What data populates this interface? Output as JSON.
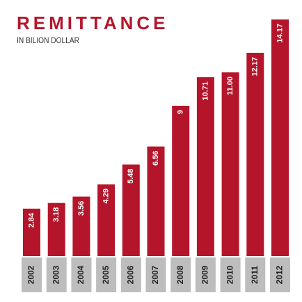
{
  "chart_data": {
    "type": "bar",
    "title": "REMITTANCE",
    "subtitle": "IN BILION DOLLAR",
    "categories": [
      "2002",
      "2003",
      "2004",
      "2005",
      "2006",
      "2007",
      "2008",
      "2009",
      "2010",
      "2011",
      "2012"
    ],
    "values": [
      2.84,
      3.18,
      3.56,
      4.29,
      5.48,
      6.56,
      9,
      10.71,
      11.0,
      12.17,
      14.17
    ],
    "value_labels": [
      "2.84",
      "3.18",
      "3.56",
      "4.29",
      "5.48",
      "6.56",
      "9",
      "10.71",
      "11.00",
      "12.17",
      "14.17"
    ],
    "color": "#b5152b"
  }
}
